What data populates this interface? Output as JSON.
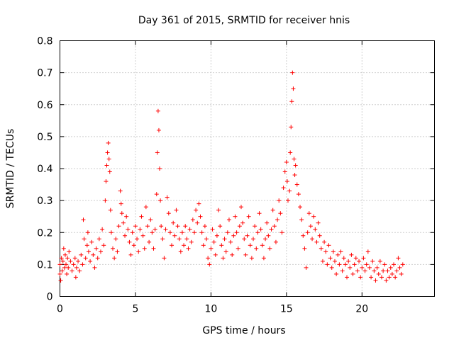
{
  "chart_data": {
    "type": "scatter",
    "title": "Day 361 of 2015, SRMTID for receiver hnis",
    "xlabel": "GPS time / hours",
    "ylabel": "SRMTID / TECUs",
    "xlim": [
      0,
      24.8
    ],
    "ylim": [
      0,
      0.8
    ],
    "xticks": [
      "0",
      "5",
      "10",
      "15",
      "20"
    ],
    "yticks": [
      "0",
      "0.1",
      "0.2",
      "0.3",
      "0.4",
      "0.5",
      "0.6",
      "0.7",
      "0.8"
    ],
    "grid": true,
    "marker": "+",
    "color": "#ff0000",
    "series": [
      {
        "name": "SRMTID",
        "points": [
          [
            0.0,
            0.07
          ],
          [
            0.0,
            0.1
          ],
          [
            0.05,
            0.05
          ],
          [
            0.1,
            0.12
          ],
          [
            0.15,
            0.08
          ],
          [
            0.2,
            0.11
          ],
          [
            0.25,
            0.15
          ],
          [
            0.3,
            0.09
          ],
          [
            0.35,
            0.13
          ],
          [
            0.4,
            0.1
          ],
          [
            0.45,
            0.07
          ],
          [
            0.5,
            0.12
          ],
          [
            0.55,
            0.09
          ],
          [
            0.6,
            0.14
          ],
          [
            0.7,
            0.11
          ],
          [
            0.8,
            0.08
          ],
          [
            0.9,
            0.1
          ],
          [
            1.0,
            0.12
          ],
          [
            1.05,
            0.06
          ],
          [
            1.1,
            0.09
          ],
          [
            1.2,
            0.11
          ],
          [
            1.3,
            0.08
          ],
          [
            1.4,
            0.13
          ],
          [
            1.5,
            0.1
          ],
          [
            1.55,
            0.24
          ],
          [
            1.6,
            0.18
          ],
          [
            1.7,
            0.12
          ],
          [
            1.8,
            0.16
          ],
          [
            1.85,
            0.2
          ],
          [
            1.9,
            0.14
          ],
          [
            2.0,
            0.11
          ],
          [
            2.1,
            0.17
          ],
          [
            2.2,
            0.13
          ],
          [
            2.3,
            0.09
          ],
          [
            2.4,
            0.15
          ],
          [
            2.5,
            0.12
          ],
          [
            2.6,
            0.18
          ],
          [
            2.7,
            0.14
          ],
          [
            2.8,
            0.21
          ],
          [
            2.9,
            0.16
          ],
          [
            3.0,
            0.3
          ],
          [
            3.05,
            0.36
          ],
          [
            3.1,
            0.41
          ],
          [
            3.15,
            0.45
          ],
          [
            3.2,
            0.48
          ],
          [
            3.25,
            0.43
          ],
          [
            3.3,
            0.39
          ],
          [
            3.35,
            0.27
          ],
          [
            3.4,
            0.2
          ],
          [
            3.5,
            0.15
          ],
          [
            3.6,
            0.12
          ],
          [
            3.7,
            0.18
          ],
          [
            3.8,
            0.14
          ],
          [
            3.9,
            0.22
          ],
          [
            4.0,
            0.33
          ],
          [
            4.05,
            0.29
          ],
          [
            4.1,
            0.26
          ],
          [
            4.2,
            0.23
          ],
          [
            4.3,
            0.19
          ],
          [
            4.4,
            0.25
          ],
          [
            4.5,
            0.21
          ],
          [
            4.6,
            0.17
          ],
          [
            4.7,
            0.13
          ],
          [
            4.8,
            0.2
          ],
          [
            4.9,
            0.16
          ],
          [
            5.0,
            0.22
          ],
          [
            5.1,
            0.18
          ],
          [
            5.2,
            0.14
          ],
          [
            5.3,
            0.21
          ],
          [
            5.4,
            0.25
          ],
          [
            5.5,
            0.19
          ],
          [
            5.6,
            0.15
          ],
          [
            5.7,
            0.28
          ],
          [
            5.8,
            0.22
          ],
          [
            5.9,
            0.17
          ],
          [
            6.0,
            0.24
          ],
          [
            6.1,
            0.2
          ],
          [
            6.2,
            0.15
          ],
          [
            6.3,
            0.21
          ],
          [
            6.4,
            0.32
          ],
          [
            6.45,
            0.45
          ],
          [
            6.5,
            0.58
          ],
          [
            6.55,
            0.52
          ],
          [
            6.6,
            0.4
          ],
          [
            6.65,
            0.3
          ],
          [
            6.7,
            0.22
          ],
          [
            6.8,
            0.18
          ],
          [
            6.9,
            0.12
          ],
          [
            7.0,
            0.21
          ],
          [
            7.1,
            0.31
          ],
          [
            7.2,
            0.26
          ],
          [
            7.3,
            0.2
          ],
          [
            7.4,
            0.16
          ],
          [
            7.5,
            0.23
          ],
          [
            7.6,
            0.19
          ],
          [
            7.7,
            0.27
          ],
          [
            7.8,
            0.22
          ],
          [
            7.9,
            0.18
          ],
          [
            8.0,
            0.14
          ],
          [
            8.1,
            0.2
          ],
          [
            8.2,
            0.16
          ],
          [
            8.3,
            0.22
          ],
          [
            8.4,
            0.18
          ],
          [
            8.5,
            0.15
          ],
          [
            8.6,
            0.21
          ],
          [
            8.7,
            0.17
          ],
          [
            8.8,
            0.24
          ],
          [
            8.9,
            0.2
          ],
          [
            9.0,
            0.27
          ],
          [
            9.1,
            0.23
          ],
          [
            9.2,
            0.29
          ],
          [
            9.3,
            0.25
          ],
          [
            9.4,
            0.2
          ],
          [
            9.5,
            0.16
          ],
          [
            9.6,
            0.22
          ],
          [
            9.7,
            0.18
          ],
          [
            9.8,
            0.12
          ],
          [
            9.9,
            0.1
          ],
          [
            10.0,
            0.15
          ],
          [
            10.1,
            0.21
          ],
          [
            10.2,
            0.17
          ],
          [
            10.3,
            0.13
          ],
          [
            10.4,
            0.19
          ],
          [
            10.5,
            0.27
          ],
          [
            10.6,
            0.22
          ],
          [
            10.7,
            0.16
          ],
          [
            10.8,
            0.12
          ],
          [
            10.9,
            0.18
          ],
          [
            11.0,
            0.14
          ],
          [
            11.1,
            0.2
          ],
          [
            11.2,
            0.24
          ],
          [
            11.3,
            0.17
          ],
          [
            11.4,
            0.13
          ],
          [
            11.5,
            0.19
          ],
          [
            11.6,
            0.25
          ],
          [
            11.7,
            0.2
          ],
          [
            11.8,
            0.15
          ],
          [
            11.9,
            0.22
          ],
          [
            12.0,
            0.28
          ],
          [
            12.1,
            0.23
          ],
          [
            12.2,
            0.18
          ],
          [
            12.3,
            0.13
          ],
          [
            12.4,
            0.19
          ],
          [
            12.5,
            0.25
          ],
          [
            12.6,
            0.16
          ],
          [
            12.7,
            0.12
          ],
          [
            12.8,
            0.18
          ],
          [
            12.9,
            0.22
          ],
          [
            13.0,
            0.15
          ],
          [
            13.1,
            0.2
          ],
          [
            13.2,
            0.26
          ],
          [
            13.3,
            0.21
          ],
          [
            13.4,
            0.16
          ],
          [
            13.5,
            0.12
          ],
          [
            13.6,
            0.18
          ],
          [
            13.7,
            0.23
          ],
          [
            13.8,
            0.19
          ],
          [
            13.9,
            0.15
          ],
          [
            14.0,
            0.21
          ],
          [
            14.1,
            0.27
          ],
          [
            14.2,
            0.22
          ],
          [
            14.3,
            0.17
          ],
          [
            14.4,
            0.24
          ],
          [
            14.5,
            0.3
          ],
          [
            14.6,
            0.26
          ],
          [
            14.7,
            0.2
          ],
          [
            14.8,
            0.34
          ],
          [
            14.9,
            0.39
          ],
          [
            15.0,
            0.42
          ],
          [
            15.05,
            0.36
          ],
          [
            15.1,
            0.3
          ],
          [
            15.2,
            0.33
          ],
          [
            15.25,
            0.45
          ],
          [
            15.3,
            0.53
          ],
          [
            15.35,
            0.61
          ],
          [
            15.4,
            0.7
          ],
          [
            15.45,
            0.65
          ],
          [
            15.5,
            0.43
          ],
          [
            15.55,
            0.38
          ],
          [
            15.6,
            0.41
          ],
          [
            15.7,
            0.35
          ],
          [
            15.8,
            0.32
          ],
          [
            15.9,
            0.28
          ],
          [
            16.0,
            0.24
          ],
          [
            16.1,
            0.19
          ],
          [
            16.2,
            0.15
          ],
          [
            16.3,
            0.09
          ],
          [
            16.4,
            0.2
          ],
          [
            16.5,
            0.26
          ],
          [
            16.6,
            0.22
          ],
          [
            16.7,
            0.18
          ],
          [
            16.8,
            0.25
          ],
          [
            16.9,
            0.21
          ],
          [
            17.0,
            0.17
          ],
          [
            17.1,
            0.23
          ],
          [
            17.2,
            0.19
          ],
          [
            17.3,
            0.15
          ],
          [
            17.4,
            0.11
          ],
          [
            17.5,
            0.17
          ],
          [
            17.6,
            0.14
          ],
          [
            17.7,
            0.1
          ],
          [
            17.8,
            0.16
          ],
          [
            17.9,
            0.12
          ],
          [
            18.0,
            0.09
          ],
          [
            18.1,
            0.14
          ],
          [
            18.2,
            0.11
          ],
          [
            18.3,
            0.07
          ],
          [
            18.4,
            0.13
          ],
          [
            18.5,
            0.1
          ],
          [
            18.6,
            0.14
          ],
          [
            18.7,
            0.08
          ],
          [
            18.8,
            0.12
          ],
          [
            18.9,
            0.1
          ],
          [
            19.0,
            0.06
          ],
          [
            19.1,
            0.11
          ],
          [
            19.2,
            0.09
          ],
          [
            19.3,
            0.13
          ],
          [
            19.4,
            0.07
          ],
          [
            19.5,
            0.1
          ],
          [
            19.6,
            0.12
          ],
          [
            19.7,
            0.08
          ],
          [
            19.8,
            0.11
          ],
          [
            19.9,
            0.06
          ],
          [
            20.0,
            0.09
          ],
          [
            20.1,
            0.12
          ],
          [
            20.2,
            0.08
          ],
          [
            20.3,
            0.1
          ],
          [
            20.4,
            0.14
          ],
          [
            20.5,
            0.09
          ],
          [
            20.6,
            0.06
          ],
          [
            20.7,
            0.11
          ],
          [
            20.8,
            0.08
          ],
          [
            20.9,
            0.05
          ],
          [
            21.0,
            0.09
          ],
          [
            21.1,
            0.07
          ],
          [
            21.2,
            0.11
          ],
          [
            21.3,
            0.06
          ],
          [
            21.4,
            0.08
          ],
          [
            21.5,
            0.1
          ],
          [
            21.6,
            0.05
          ],
          [
            21.7,
            0.08
          ],
          [
            21.8,
            0.06
          ],
          [
            21.9,
            0.09
          ],
          [
            22.0,
            0.07
          ],
          [
            22.1,
            0.1
          ],
          [
            22.2,
            0.06
          ],
          [
            22.3,
            0.08
          ],
          [
            22.4,
            0.12
          ],
          [
            22.5,
            0.09
          ],
          [
            22.6,
            0.07
          ],
          [
            22.7,
            0.1
          ]
        ]
      }
    ]
  }
}
